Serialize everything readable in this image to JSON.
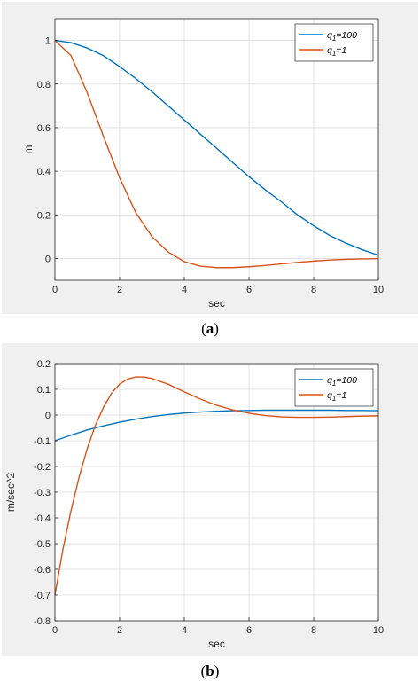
{
  "chart_data": [
    {
      "type": "line",
      "xlabel": "sec",
      "ylabel": "m",
      "xlim": [
        0,
        10
      ],
      "ylim": [
        -0.1,
        1.1
      ],
      "xticks": [
        "0",
        "2",
        "4",
        "6",
        "8",
        "10"
      ],
      "yticks": [
        "0",
        "0.2",
        "0.4",
        "0.6",
        "0.8",
        "1"
      ],
      "grid": true,
      "legend_position": "top-right",
      "series": [
        {
          "name": "q1=100",
          "legend_main": "q",
          "legend_sub": "1",
          "legend_tail": "=100",
          "color": "#0072bd",
          "x": [
            0,
            0.5,
            1,
            1.5,
            2,
            2.5,
            3,
            3.5,
            4,
            4.5,
            5,
            5.5,
            6,
            6.5,
            7,
            7.5,
            8,
            8.5,
            9,
            9.5,
            10
          ],
          "y": [
            1.0,
            0.99,
            0.965,
            0.93,
            0.88,
            0.825,
            0.765,
            0.7,
            0.635,
            0.57,
            0.505,
            0.44,
            0.375,
            0.315,
            0.26,
            0.2,
            0.15,
            0.105,
            0.07,
            0.04,
            0.015
          ]
        },
        {
          "name": "q1=1",
          "legend_main": "q",
          "legend_sub": "1",
          "legend_tail": "=1",
          "color": "#d95319",
          "x": [
            0,
            0.5,
            1,
            1.5,
            2,
            2.5,
            3,
            3.5,
            4,
            4.5,
            5,
            5.5,
            6,
            6.5,
            7,
            7.5,
            8,
            8.5,
            9,
            9.5,
            10
          ],
          "y": [
            1.0,
            0.93,
            0.76,
            0.56,
            0.37,
            0.21,
            0.1,
            0.03,
            -0.015,
            -0.035,
            -0.042,
            -0.042,
            -0.038,
            -0.032,
            -0.025,
            -0.018,
            -0.012,
            -0.007,
            -0.004,
            -0.002,
            -0.001
          ]
        }
      ]
    },
    {
      "type": "line",
      "xlabel": "sec",
      "ylabel": "m/sec^2",
      "xlim": [
        0,
        10
      ],
      "ylim": [
        -0.8,
        0.2
      ],
      "xticks": [
        "0",
        "2",
        "4",
        "6",
        "8",
        "10"
      ],
      "yticks": [
        "-0.8",
        "-0.7",
        "-0.6",
        "-0.5",
        "-0.4",
        "-0.3",
        "-0.2",
        "-0.1",
        "0",
        "0.1",
        "0.2"
      ],
      "grid": true,
      "legend_position": "top-right",
      "series": [
        {
          "name": "q1=100",
          "legend_main": "q",
          "legend_sub": "1",
          "legend_tail": "=100",
          "color": "#0072bd",
          "x": [
            0,
            0.5,
            1,
            1.5,
            2,
            2.5,
            3,
            3.5,
            4,
            4.5,
            5,
            5.5,
            6,
            6.5,
            7,
            7.5,
            8,
            8.5,
            9,
            9.5,
            10
          ],
          "y": [
            -0.1,
            -0.078,
            -0.058,
            -0.042,
            -0.028,
            -0.016,
            -0.006,
            0.002,
            0.008,
            0.012,
            0.015,
            0.017,
            0.018,
            0.019,
            0.019,
            0.019,
            0.019,
            0.019,
            0.018,
            0.018,
            0.017
          ]
        },
        {
          "name": "q1=1",
          "legend_main": "q",
          "legend_sub": "1",
          "legend_tail": "=1",
          "color": "#d95319",
          "x": [
            0,
            0.25,
            0.5,
            0.75,
            1,
            1.25,
            1.5,
            1.75,
            2,
            2.25,
            2.5,
            2.75,
            3,
            3.5,
            4,
            4.5,
            5,
            5.5,
            6,
            6.5,
            7,
            7.5,
            8,
            8.5,
            9,
            9.5,
            10
          ],
          "y": [
            -0.7,
            -0.52,
            -0.37,
            -0.24,
            -0.13,
            -0.04,
            0.03,
            0.085,
            0.12,
            0.14,
            0.148,
            0.148,
            0.142,
            0.12,
            0.09,
            0.062,
            0.038,
            0.02,
            0.007,
            -0.002,
            -0.007,
            -0.009,
            -0.009,
            -0.008,
            -0.006,
            -0.004,
            -0.003
          ]
        }
      ]
    }
  ],
  "captions": [
    {
      "open": "(",
      "letter": "a",
      "close": ")"
    },
    {
      "open": "(",
      "letter": "b",
      "close": ")"
    }
  ]
}
